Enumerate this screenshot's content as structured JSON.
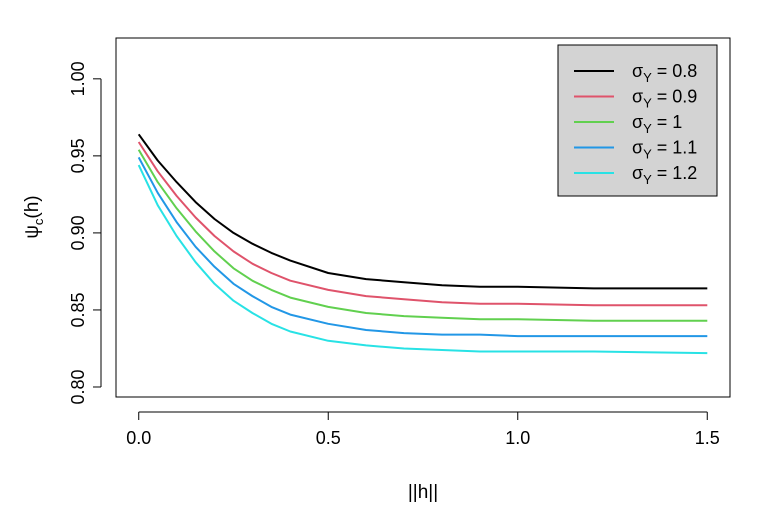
{
  "chart_data": {
    "type": "line",
    "xlabel": "||h||",
    "ylabel": {
      "base": "ψ",
      "sub": "c",
      "suffix": "(h)"
    },
    "xlim": [
      -0.06,
      1.56
    ],
    "ylim": [
      0.7935,
      1.0265
    ],
    "x_ticks": [
      {
        "value": 0.0,
        "label": "0.0"
      },
      {
        "value": 0.5,
        "label": "0.5"
      },
      {
        "value": 1.0,
        "label": "1.0"
      },
      {
        "value": 1.5,
        "label": "1.5"
      }
    ],
    "y_ticks": [
      {
        "value": 0.8,
        "label": "0.80"
      },
      {
        "value": 0.85,
        "label": "0.85"
      },
      {
        "value": 0.9,
        "label": "0.90"
      },
      {
        "value": 0.95,
        "label": "0.95"
      },
      {
        "value": 1.0,
        "label": "1.00"
      }
    ],
    "grid": false,
    "legend_position": "top-right",
    "x": [
      0,
      0.05,
      0.1,
      0.15,
      0.2,
      0.25,
      0.3,
      0.35,
      0.4,
      0.5,
      0.6,
      0.7,
      0.8,
      0.9,
      1.0,
      1.2,
      1.5
    ],
    "series": [
      {
        "name": {
          "base": "σ",
          "sub": "Y",
          "rest": " = 0.8"
        },
        "color": "#000000",
        "values": [
          0.964,
          0.947,
          0.933,
          0.92,
          0.909,
          0.9,
          0.893,
          0.887,
          0.882,
          0.874,
          0.87,
          0.868,
          0.866,
          0.865,
          0.865,
          0.864,
          0.864
        ]
      },
      {
        "name": {
          "base": "σ",
          "sub": "Y",
          "rest": " = 0.9"
        },
        "color": "#DF536B",
        "values": [
          0.959,
          0.94,
          0.924,
          0.91,
          0.898,
          0.888,
          0.88,
          0.874,
          0.869,
          0.863,
          0.859,
          0.857,
          0.855,
          0.854,
          0.854,
          0.853,
          0.853
        ]
      },
      {
        "name": {
          "base": "σ",
          "sub": "Y",
          "rest": " = 1"
        },
        "color": "#61D04F",
        "values": [
          0.954,
          0.933,
          0.916,
          0.901,
          0.888,
          0.877,
          0.869,
          0.863,
          0.858,
          0.852,
          0.848,
          0.846,
          0.845,
          0.844,
          0.844,
          0.843,
          0.843
        ]
      },
      {
        "name": {
          "base": "σ",
          "sub": "Y",
          "rest": " = 1.1"
        },
        "color": "#2297E6",
        "values": [
          0.949,
          0.926,
          0.907,
          0.891,
          0.878,
          0.867,
          0.859,
          0.852,
          0.847,
          0.841,
          0.837,
          0.835,
          0.834,
          0.834,
          0.833,
          0.833,
          0.833
        ]
      },
      {
        "name": {
          "base": "σ",
          "sub": "Y",
          "rest": " = 1.2"
        },
        "color": "#28E2E5",
        "values": [
          0.944,
          0.918,
          0.898,
          0.881,
          0.867,
          0.856,
          0.848,
          0.841,
          0.836,
          0.83,
          0.827,
          0.825,
          0.824,
          0.823,
          0.823,
          0.823,
          0.822
        ]
      }
    ],
    "legend_box_fill": "#D3D3D3"
  }
}
